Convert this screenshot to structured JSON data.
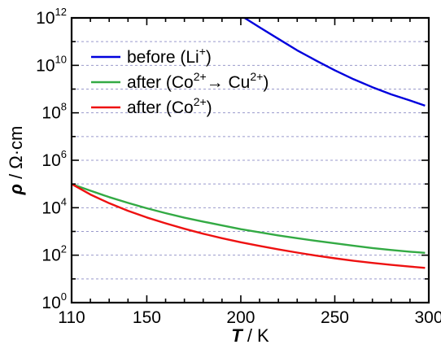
{
  "chart_data": {
    "type": "line",
    "title": "",
    "xlabel": {
      "symbol": "T",
      "unit": " / K"
    },
    "ylabel": {
      "symbol": "ρ",
      "unit": " / Ω·cm"
    },
    "xlim": [
      110,
      300
    ],
    "ylim": [
      1,
      1000000000000
    ],
    "yscale": "log",
    "grid": {
      "x": false,
      "y": true,
      "style": "dashed"
    },
    "x_ticks": [
      {
        "value": 110,
        "label": "110"
      },
      {
        "value": 150,
        "label": "150"
      },
      {
        "value": 200,
        "label": "200"
      },
      {
        "value": 250,
        "label": "250"
      },
      {
        "value": 300,
        "label": "300"
      }
    ],
    "y_ticks": [
      {
        "value": 1,
        "base": "10",
        "exp": "0"
      },
      {
        "value": 100,
        "base": "10",
        "exp": "2"
      },
      {
        "value": 10000,
        "base": "10",
        "exp": "4"
      },
      {
        "value": 1000000,
        "base": "10",
        "exp": "6"
      },
      {
        "value": 100000000,
        "base": "10",
        "exp": "8"
      },
      {
        "value": 10000000000,
        "base": "10",
        "exp": "10"
      },
      {
        "value": 1000000000000,
        "base": "10",
        "exp": "12"
      }
    ],
    "legend_position": "top-left",
    "series": [
      {
        "name": "before (Li+)",
        "legend": {
          "pre": "before (Li",
          "sup1": "+",
          "mid": ")",
          "sup2": "",
          "post": ""
        },
        "color": "#0000dd",
        "x": [
          202,
          210,
          220,
          230,
          240,
          250,
          260,
          270,
          280,
          290,
          298
        ],
        "y": [
          1000000000000.0,
          400000000000.0,
          130000000000.0,
          43000000000.0,
          16000000000.0,
          6200000000.0,
          2600000000.0,
          1200000000.0,
          600000000.0,
          330000000.0,
          200000000.0
        ]
      },
      {
        "name": "after (Co2+ → Cu2+)",
        "legend": {
          "pre": "after (Co",
          "sup1": "2+",
          "mid": "→ Cu",
          "sup2": "2+",
          "post": ")"
        },
        "color": "#33aa44",
        "x": [
          110,
          120,
          130,
          140,
          150,
          160,
          170,
          180,
          190,
          200,
          210,
          220,
          230,
          240,
          250,
          260,
          270,
          280,
          290,
          298
        ],
        "y": [
          100000,
          52000,
          28000,
          16000,
          9500,
          5900,
          3800,
          2600,
          1800,
          1250,
          920,
          680,
          520,
          400,
          315,
          250,
          200,
          165,
          140,
          125
        ]
      },
      {
        "name": "after (Co2+)",
        "legend": {
          "pre": "after (Co",
          "sup1": "2+",
          "mid": ")",
          "sup2": "",
          "post": ""
        },
        "color": "#ee1111",
        "x": [
          110,
          120,
          130,
          140,
          150,
          160,
          170,
          180,
          190,
          200,
          210,
          220,
          230,
          240,
          250,
          260,
          270,
          280,
          290,
          298
        ],
        "y": [
          100000,
          36000,
          15500,
          7400,
          3900,
          2200,
          1300,
          800,
          520,
          350,
          245,
          175,
          128,
          96,
          74,
          58,
          47,
          39,
          33,
          29
        ]
      }
    ]
  }
}
